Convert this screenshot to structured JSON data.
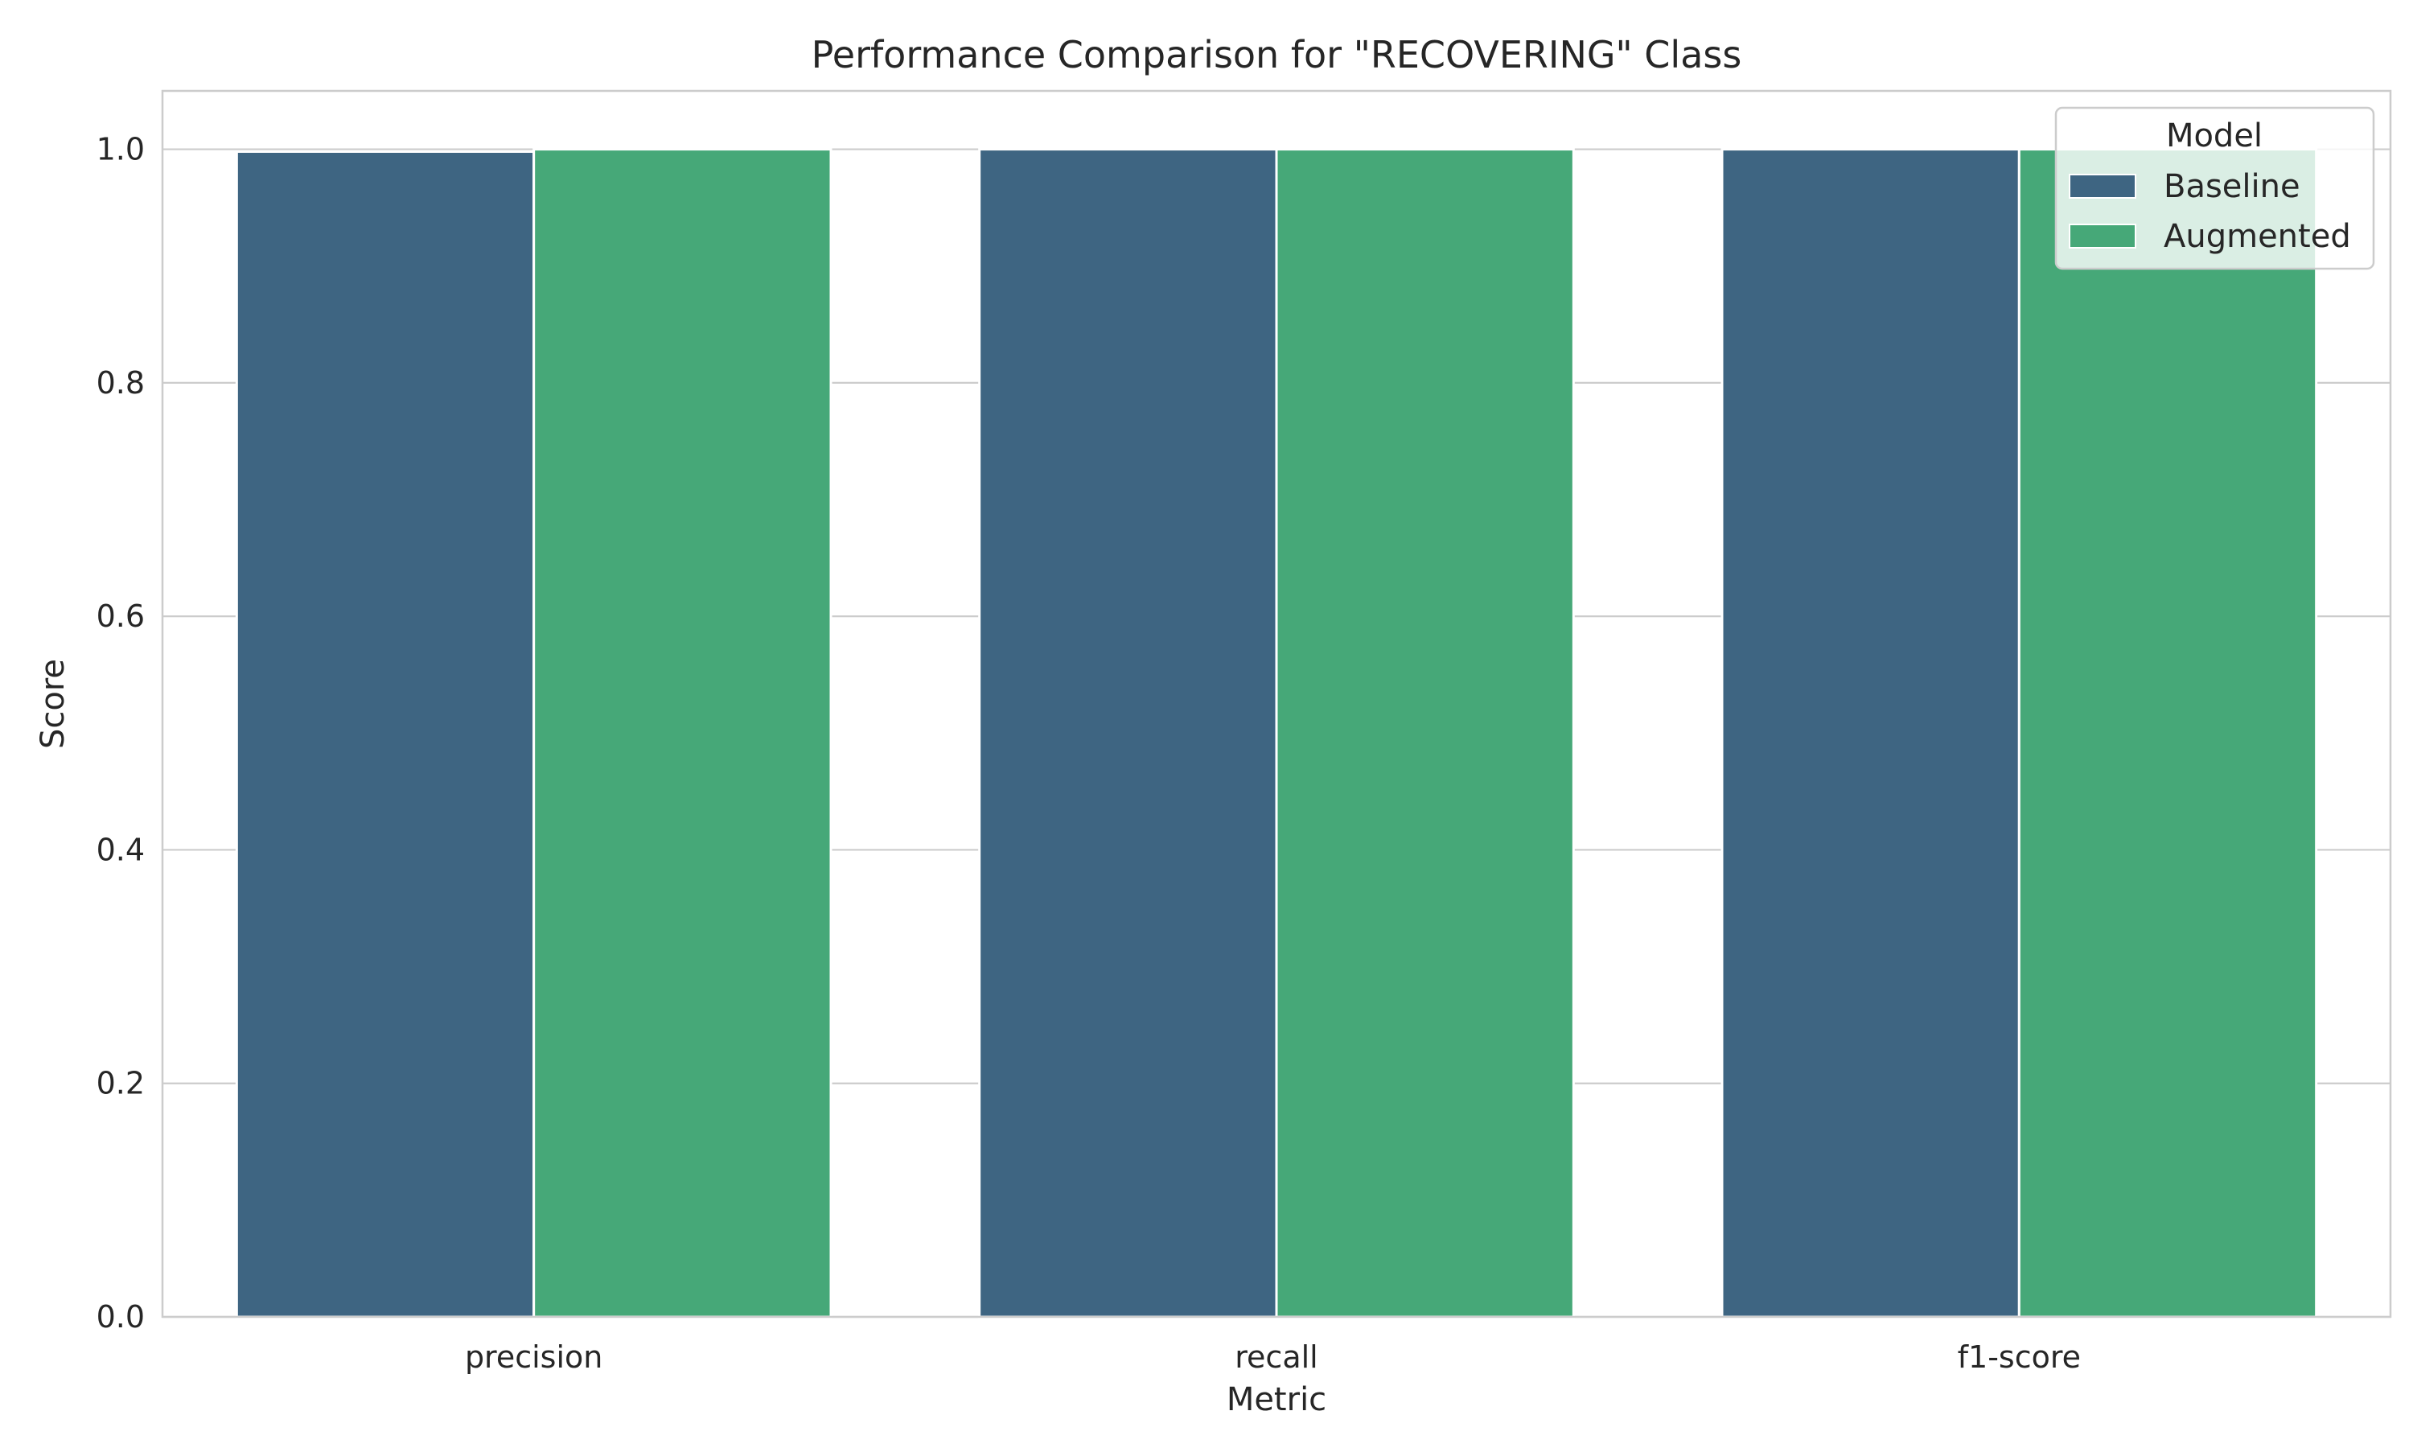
{
  "chart_data": {
    "type": "bar",
    "title": "Performance Comparison for \"RECOVERING\" Class",
    "xlabel": "Metric",
    "ylabel": "Score",
    "categories": [
      "precision",
      "recall",
      "f1-score"
    ],
    "series": [
      {
        "name": "Baseline",
        "values": [
          0.998,
          1.0,
          1.0
        ],
        "color": "#3e6582"
      },
      {
        "name": "Augmented",
        "values": [
          1.0,
          1.0,
          1.0
        ],
        "color": "#46a878"
      }
    ],
    "ylim": [
      0,
      1.05
    ],
    "yticks": [
      "0.0",
      "0.2",
      "0.4",
      "0.6",
      "0.8",
      "1.0"
    ],
    "grid": true,
    "legend": {
      "title": "Model",
      "placement": "top-right"
    }
  }
}
